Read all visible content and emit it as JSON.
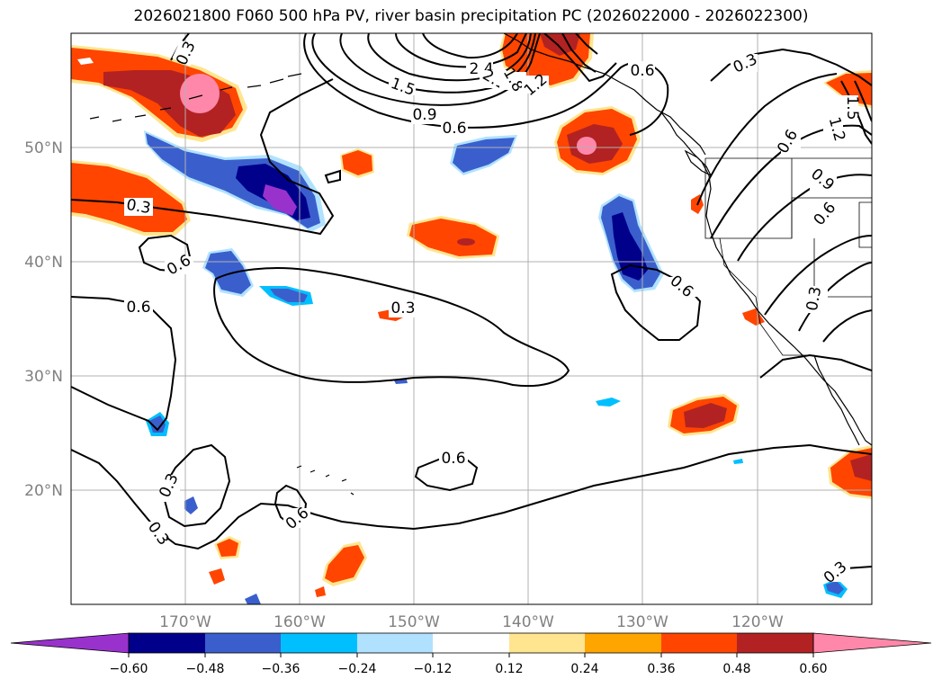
{
  "title": "2026021800 F060 500 hPa PV, river basin precipitation PC (2026022000 - 2026022300)",
  "map": {
    "projection": "PlateCarree",
    "lon_range": [
      -180,
      -110
    ],
    "lat_range": [
      10,
      60
    ],
    "lat_labels": [
      "50°N",
      "40°N",
      "30°N",
      "20°N"
    ],
    "lon_labels": [
      "170°W",
      "160°W",
      "150°W",
      "140°W",
      "130°W",
      "120°W"
    ],
    "gridlines": true,
    "ocean_color": "#ffffff",
    "coastline_color": "#000000"
  },
  "pv_contour_labels": [
    "0.3",
    "1.5",
    "2.4",
    "2.1",
    "1.8",
    "1.2",
    "0.9",
    "0.6",
    "0.6",
    "0.3",
    "1.5",
    "1.2",
    "0.6",
    "0.9",
    "0.6",
    "0.3",
    "0.6",
    "0.6",
    "0.3",
    "0.6",
    "0.6",
    "0.3",
    "0.3",
    "0.6",
    "0.3",
    "0.3"
  ],
  "colorbar": {
    "ticks": [
      "−0.60",
      "−0.48",
      "−0.36",
      "−0.24",
      "−0.12",
      "0.12",
      "0.24",
      "0.36",
      "0.48",
      "0.60"
    ],
    "colors": [
      "#9932cc",
      "#00008b",
      "#3a5fcd",
      "#00bfff",
      "#b0e2ff",
      "#ffffff",
      "#ffe58f",
      "#ffa500",
      "#ff4500",
      "#b22222",
      "#ff88aa"
    ],
    "extend": "both"
  }
}
